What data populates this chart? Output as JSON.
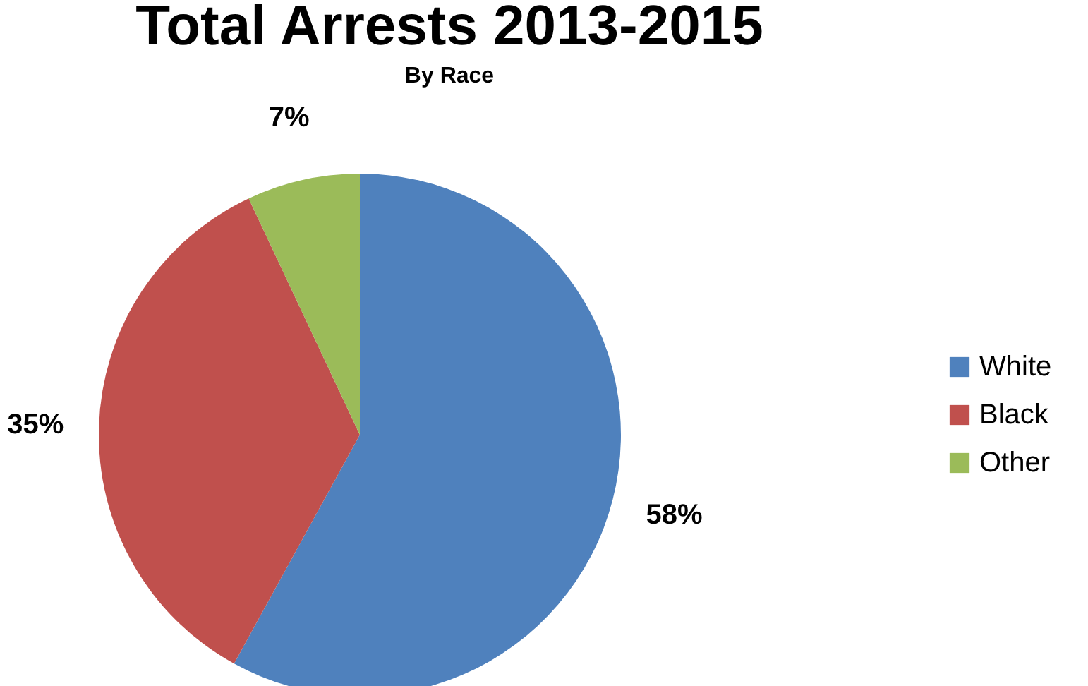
{
  "chart_data": {
    "type": "pie",
    "title": "Total Arrests 2013-2015",
    "subtitle": "By Race",
    "categories": [
      "White",
      "Black",
      "Other"
    ],
    "values": [
      58,
      35,
      7
    ],
    "colors": [
      "#4f81bd",
      "#c0504d",
      "#9bbb59"
    ],
    "value_labels": [
      "58%",
      "35%",
      "7%"
    ],
    "legend": "right"
  }
}
